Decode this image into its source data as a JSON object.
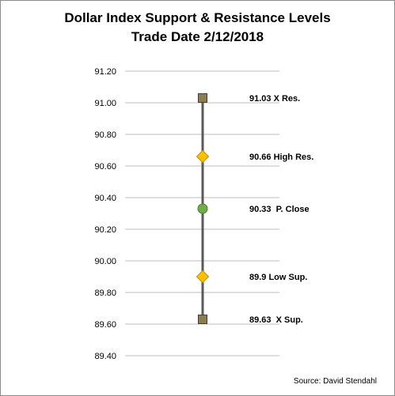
{
  "chart_data": {
    "type": "scatter",
    "title": "Dollar Index Support & Resistance Levels",
    "subtitle": "Trade Date 2/12/2018",
    "ylim": [
      89.4,
      91.2
    ],
    "yticks": [
      "91.20",
      "91.00",
      "90.80",
      "90.60",
      "90.40",
      "90.20",
      "90.00",
      "89.80",
      "89.60",
      "89.40"
    ],
    "ytick_values": [
      91.2,
      91.0,
      90.8,
      90.6,
      90.4,
      90.2,
      90.0,
      89.8,
      89.6,
      89.4
    ],
    "grid": true,
    "points": [
      {
        "value": 91.03,
        "label": "91.03 X Res.",
        "marker": "square",
        "color": "#8c7d4e"
      },
      {
        "value": 90.66,
        "label": "90.66 High Res.",
        "marker": "diamond",
        "color": "#ffc000"
      },
      {
        "value": 90.33,
        "label": "90.33  P. Close",
        "marker": "circle",
        "color": "#70ad47"
      },
      {
        "value": 89.9,
        "label": "89.9 Low Sup.",
        "marker": "diamond",
        "color": "#ffc000"
      },
      {
        "value": 89.63,
        "label": "89.63  X Sup.",
        "marker": "square",
        "color": "#8c7d4e"
      }
    ],
    "line_color": "#595959",
    "gridline_color": "#bfbfbf"
  },
  "source": "Source: David Stendahl"
}
